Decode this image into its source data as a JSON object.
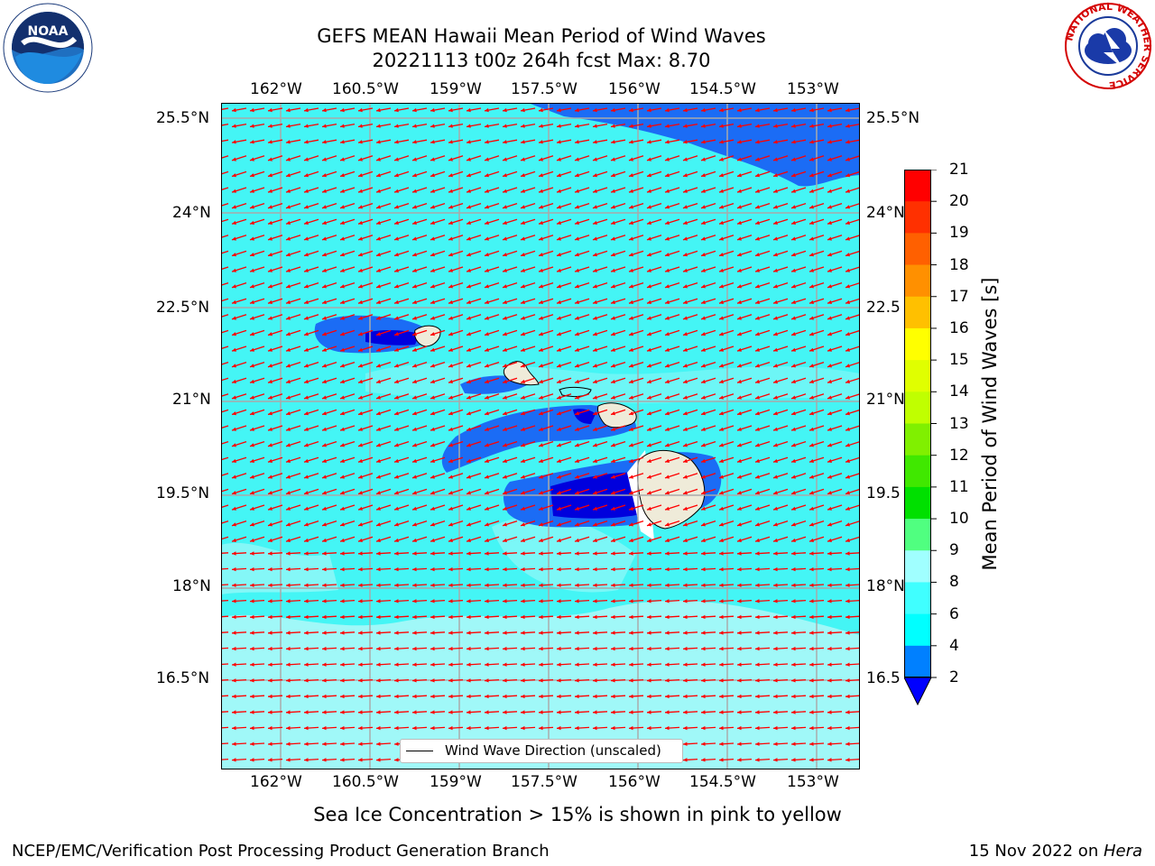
{
  "title": {
    "line1": "GEFS MEAN Hawaii Mean Period of Wind Waves",
    "line2": "20221113 t00z 264h fcst   Max: 8.70"
  },
  "logos": {
    "left": "NOAA",
    "right_ring": "NATIONAL WEATHER SERVICE"
  },
  "map": {
    "lon_ticks": [
      "162°W",
      "160.5°W",
      "159°W",
      "157.5°W",
      "156°W",
      "154.5°W",
      "153°W"
    ],
    "lat_ticks_left": [
      "25.5°N",
      "24°N",
      "22.5°N",
      "21°N",
      "19.5°N",
      "18°N",
      "16.5°N"
    ],
    "lat_ticks_right": [
      "25.5°N",
      "24°N",
      "22.5",
      "21°N",
      "19.5",
      "18°N",
      "16.5"
    ],
    "legend_label": "Wind Wave Direction (unscaled)",
    "colors": {
      "ocean_cyan": "#44f5f5",
      "light_cyan": "#a0f8f8",
      "blue": "#1b6cf5",
      "dark_blue": "#0000dd",
      "land": "#efebd9",
      "arrow": "#ff0000"
    }
  },
  "colorbar": {
    "label": "Mean Period of Wind Waves [s]",
    "ticks": [
      "2",
      "4",
      "6",
      "8",
      "9",
      "10",
      "11",
      "12",
      "13",
      "14",
      "15",
      "16",
      "17",
      "18",
      "19",
      "20",
      "21"
    ],
    "colors": [
      "#0080ff",
      "#00ffff",
      "#40ffff",
      "#a0ffff",
      "#50ff80",
      "#00e000",
      "#40e800",
      "#80f000",
      "#c0ff00",
      "#e0ff00",
      "#ffff00",
      "#ffc000",
      "#ff9000",
      "#ff6000",
      "#ff3000",
      "#ff0000"
    ],
    "extend_color": "#0000ff"
  },
  "note": "Sea Ice Concentration > 15% is shown in pink to yellow",
  "footer": {
    "left": "NCEP/EMC/Verification Post Processing Product Generation Branch",
    "right_date": "15 Nov 2022 on ",
    "right_host": "Hera"
  }
}
